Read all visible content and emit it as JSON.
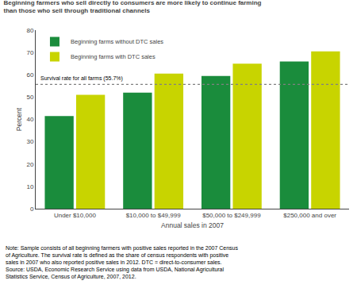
{
  "chart_data": {
    "type": "bar",
    "title": "Beginning farmers who sell directly to consumers are more likely to continue farming\nthan those who sell through traditional channels",
    "xlabel": "Annual sales in 2007",
    "ylabel": "Percent",
    "categories": [
      "Under $10,000",
      "$10,000 to $49,999",
      "$50,000 to $249,999",
      "$250,000 and over"
    ],
    "series": [
      {
        "name": "Beginning farms without DTC sales",
        "color": "#1a8c3c",
        "values": [
          41.5,
          52.0,
          59.5,
          66.0
        ]
      },
      {
        "name": "Beginning farms with DTC sales",
        "color": "#c8d400",
        "values": [
          51.0,
          60.5,
          65.0,
          70.5
        ]
      }
    ],
    "reference_line": {
      "value": 55.7,
      "label": "Survival rate for all farms (55.7%)"
    },
    "ylim": [
      0,
      80
    ],
    "yticks": [
      0,
      10,
      20,
      30,
      40,
      50,
      60,
      70,
      80
    ],
    "grid": false,
    "legend": "upper left",
    "note": "Note: Sample consists of all beginning farmers with positive sales reported in the 2007 Census\nof Agriculture. The survival rate is defined as the share of census respondents with positive\nsales in 2007 who also reported positive sales in 2012. DTC = direct-to-consumer sales.\nSource: USDA, Economic Research Service using data from USDA, National Agricultural\nStatistics Service, Census of Agriculture, 2007, 2012."
  }
}
